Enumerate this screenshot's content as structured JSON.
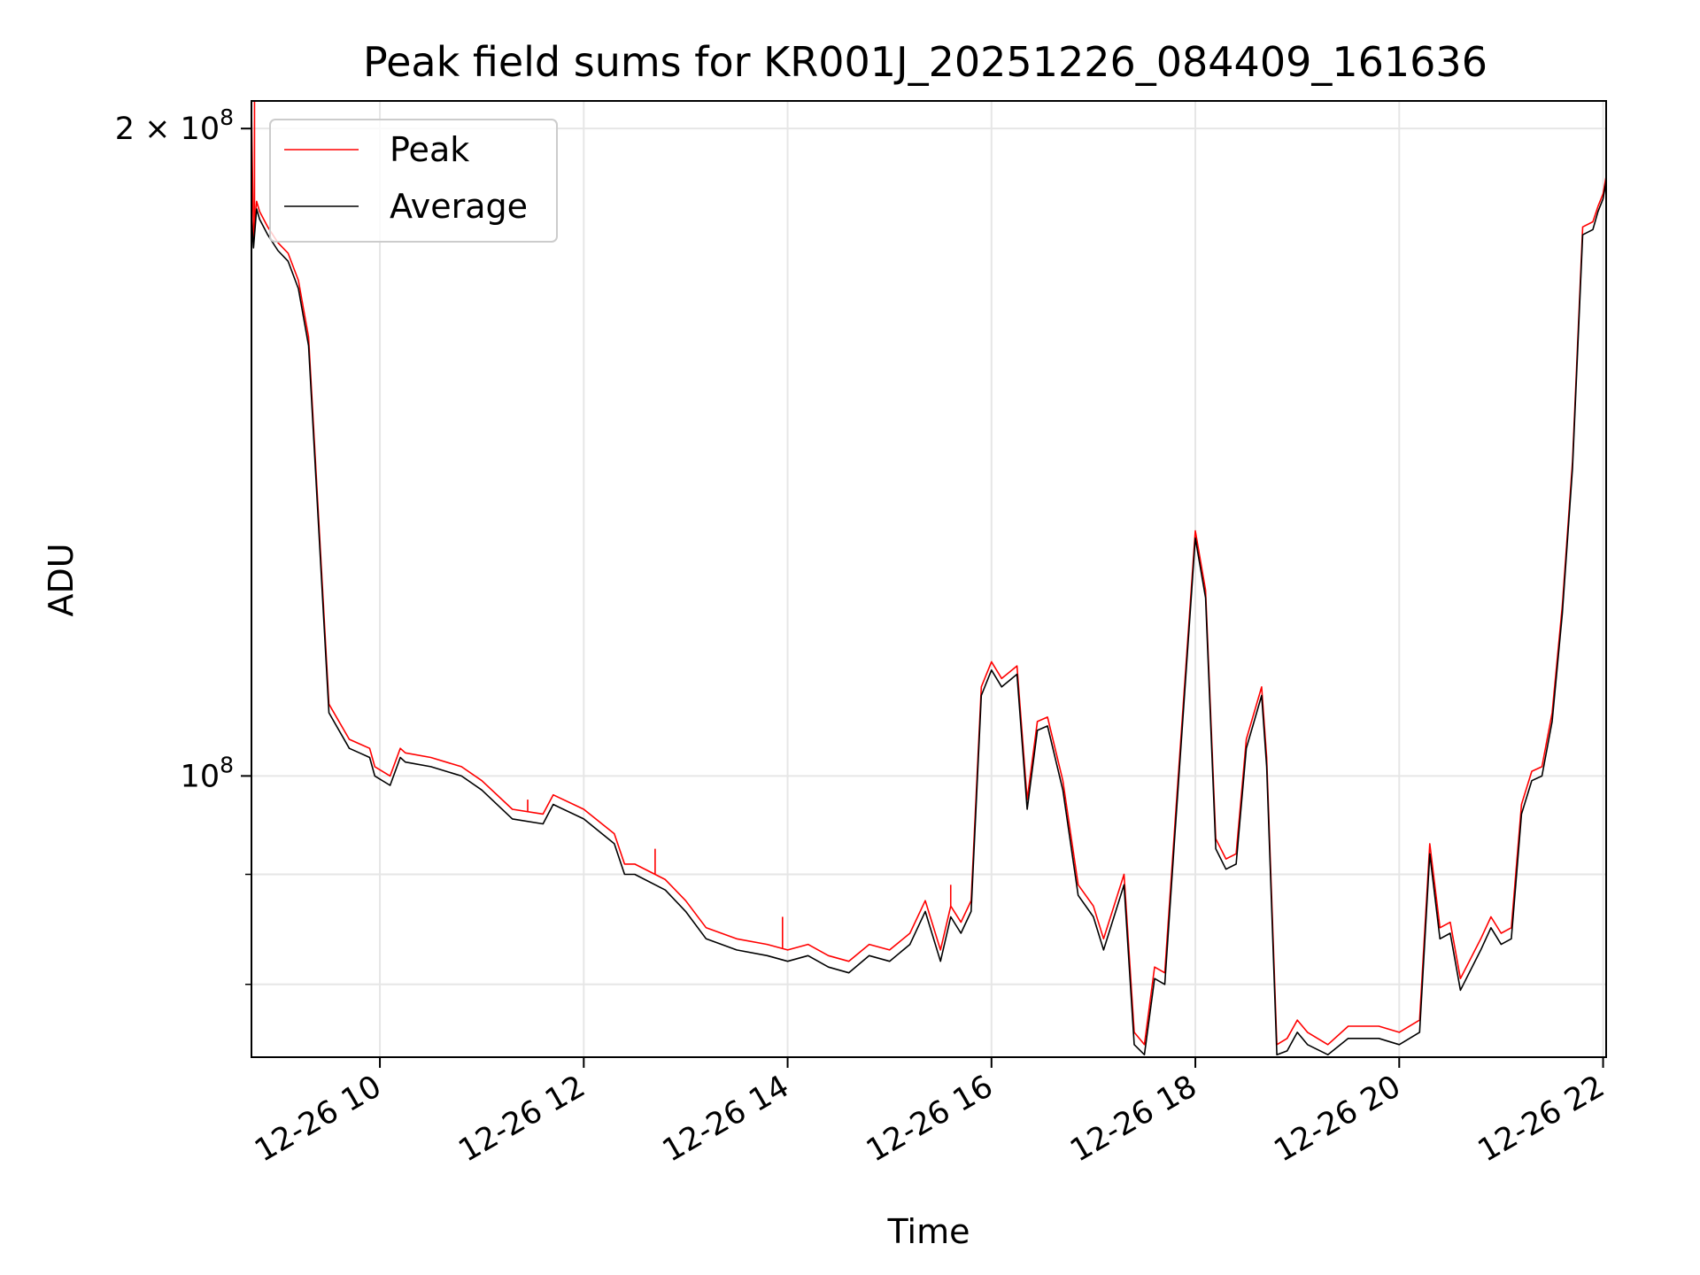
{
  "chart_data": {
    "type": "line",
    "title": "Peak field sums for KR001J_20251226_084409_161636",
    "xlabel": "Time",
    "ylabel": "ADU",
    "x_unit": "hours (2025-12-26)",
    "xlim": [
      8.74,
      22.03
    ],
    "ylim": [
      74000000,
      206000000
    ],
    "y_scale": "log",
    "grid": true,
    "legend_position": "top-left",
    "x_ticks": [
      {
        "value": 10,
        "label": "12-26 10"
      },
      {
        "value": 12,
        "label": "12-26 12"
      },
      {
        "value": 14,
        "label": "12-26 14"
      },
      {
        "value": 16,
        "label": "12-26 16"
      },
      {
        "value": 18,
        "label": "12-26 18"
      },
      {
        "value": 20,
        "label": "12-26 20"
      },
      {
        "value": 22,
        "label": "12-26 22"
      }
    ],
    "y_major_ticks": [
      {
        "value": 100000000,
        "base": "10",
        "exp": "8"
      },
      {
        "value": 200000000,
        "mant": "2",
        "base": "10",
        "exp": "8"
      }
    ],
    "y_minor_ticks": [
      80000000,
      90000000
    ],
    "series": [
      {
        "name": "Peak",
        "color": "#ff0000",
        "x": [
          8.74,
          8.76,
          8.79,
          8.82,
          8.9,
          9.0,
          9.1,
          9.2,
          9.3,
          9.5,
          9.7,
          9.8,
          9.9,
          9.95,
          10.1,
          10.2,
          10.25,
          10.5,
          10.8,
          11.0,
          11.3,
          11.6,
          11.7,
          12.0,
          12.3,
          12.4,
          12.5,
          12.8,
          13.0,
          13.2,
          13.5,
          13.8,
          14.0,
          14.2,
          14.4,
          14.6,
          14.8,
          15.0,
          15.2,
          15.35,
          15.5,
          15.6,
          15.7,
          15.8,
          15.9,
          16.0,
          16.1,
          16.25,
          16.35,
          16.45,
          16.55,
          16.7,
          16.85,
          17.0,
          17.1,
          17.3,
          17.4,
          17.5,
          17.6,
          17.7,
          17.8,
          18.0,
          18.1,
          18.2,
          18.3,
          18.4,
          18.5,
          18.65,
          18.7,
          18.8,
          18.9,
          19.0,
          19.1,
          19.3,
          19.5,
          19.6,
          19.8,
          20.0,
          20.2,
          20.3,
          20.4,
          20.5,
          20.6,
          20.8,
          20.9,
          21.0,
          21.1,
          21.2,
          21.3,
          21.4,
          21.5,
          21.6,
          21.7,
          21.8,
          21.9,
          21.95,
          22.0,
          22.03
        ],
        "y": [
          205000000,
          178000000,
          185000000,
          183000000,
          180000000,
          177000000,
          175000000,
          170000000,
          160000000,
          108000000,
          104000000,
          103500000,
          103000000,
          101000000,
          100000000,
          103000000,
          102500000,
          102000000,
          101000000,
          99500000,
          96500000,
          96000000,
          98000000,
          96500000,
          94000000,
          91000000,
          91000000,
          89500000,
          87500000,
          85000000,
          84000000,
          83500000,
          83000000,
          83500000,
          82500000,
          82000000,
          83500000,
          83000000,
          84500000,
          87500000,
          83000000,
          87000000,
          85500000,
          87500000,
          110000000,
          113000000,
          111000000,
          112500000,
          97500000,
          106000000,
          106500000,
          99500000,
          89000000,
          87000000,
          84000000,
          90000000,
          76000000,
          75000000,
          81500000,
          81000000,
          95000000,
          130000000,
          122000000,
          93500000,
          91500000,
          92000000,
          104000000,
          110000000,
          102000000,
          75000000,
          75500000,
          77000000,
          76000000,
          75000000,
          76500000,
          76500000,
          76500000,
          76000000,
          77000000,
          93000000,
          85000000,
          85500000,
          80500000,
          84000000,
          86000000,
          84500000,
          85000000,
          97000000,
          100500000,
          101000000,
          107000000,
          120000000,
          140000000,
          180000000,
          181000000,
          184000000,
          186500000,
          190000000
        ],
        "spikes": [
          {
            "x": 8.77,
            "y": 206000000
          },
          {
            "x": 11.45,
            "y": 97500000
          },
          {
            "x": 12.7,
            "y": 92500000
          },
          {
            "x": 13.95,
            "y": 86000000
          },
          {
            "x": 15.6,
            "y": 89000000
          }
        ]
      },
      {
        "name": "Average",
        "color": "#000000",
        "x": [
          8.74,
          8.76,
          8.79,
          8.82,
          8.9,
          9.0,
          9.1,
          9.2,
          9.3,
          9.5,
          9.7,
          9.8,
          9.9,
          9.95,
          10.1,
          10.2,
          10.25,
          10.5,
          10.8,
          11.0,
          11.3,
          11.6,
          11.7,
          12.0,
          12.3,
          12.4,
          12.5,
          12.8,
          13.0,
          13.2,
          13.5,
          13.8,
          14.0,
          14.2,
          14.4,
          14.6,
          14.8,
          15.0,
          15.2,
          15.35,
          15.5,
          15.6,
          15.7,
          15.8,
          15.9,
          16.0,
          16.1,
          16.25,
          16.35,
          16.45,
          16.55,
          16.7,
          16.85,
          17.0,
          17.1,
          17.3,
          17.4,
          17.5,
          17.6,
          17.7,
          17.8,
          18.0,
          18.1,
          18.2,
          18.3,
          18.4,
          18.5,
          18.65,
          18.7,
          18.8,
          18.9,
          19.0,
          19.1,
          19.3,
          19.5,
          19.6,
          19.8,
          20.0,
          20.2,
          20.3,
          20.4,
          20.5,
          20.6,
          20.8,
          20.9,
          21.0,
          21.1,
          21.2,
          21.3,
          21.4,
          21.5,
          21.6,
          21.7,
          21.8,
          21.9,
          21.95,
          22.0,
          22.03
        ],
        "y": [
          182000000,
          176000000,
          183500000,
          181500000,
          178500000,
          175500000,
          173500000,
          168500000,
          158500000,
          107000000,
          103000000,
          102500000,
          102000000,
          100000000,
          99000000,
          102000000,
          101500000,
          101000000,
          100000000,
          98500000,
          95500000,
          95000000,
          97000000,
          95500000,
          93000000,
          90000000,
          90000000,
          88500000,
          86500000,
          84000000,
          83000000,
          82500000,
          82000000,
          82500000,
          81500000,
          81000000,
          82500000,
          82000000,
          83500000,
          86500000,
          82000000,
          86000000,
          84500000,
          86500000,
          109000000,
          112000000,
          110000000,
          111500000,
          96500000,
          105000000,
          105500000,
          98500000,
          88000000,
          86000000,
          83000000,
          89000000,
          75000000,
          74200000,
          80500000,
          80000000,
          94000000,
          129000000,
          121000000,
          92500000,
          90500000,
          91000000,
          103000000,
          109000000,
          101000000,
          74200000,
          74500000,
          76000000,
          75000000,
          74200000,
          75500000,
          75500000,
          75500000,
          75000000,
          76000000,
          92000000,
          84000000,
          84500000,
          79500000,
          83000000,
          85000000,
          83500000,
          84000000,
          96000000,
          99500000,
          100000000,
          106000000,
          119000000,
          139000000,
          178500000,
          179500000,
          183000000,
          185500000,
          189000000
        ]
      }
    ]
  }
}
